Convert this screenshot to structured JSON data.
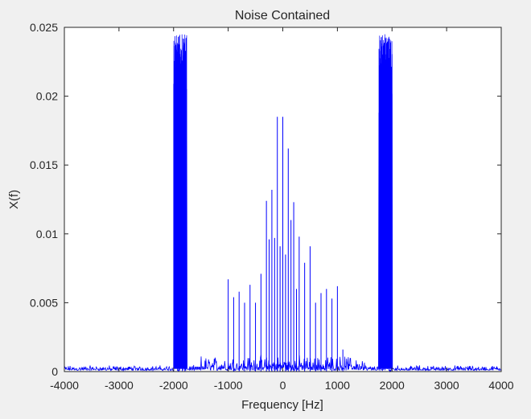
{
  "chart_data": {
    "type": "line",
    "title": "Noise Contained",
    "xlabel": "Frequency [Hz]",
    "ylabel": "X(f)",
    "xlim": [
      -4000,
      4000
    ],
    "ylim": [
      0,
      0.025
    ],
    "xticks": [
      "-4000",
      "-3000",
      "-2000",
      "-1000",
      "0",
      "1000",
      "2000",
      "3000",
      "4000"
    ],
    "yticks": [
      "0",
      "0.005",
      "0.01",
      "0.015",
      "0.02",
      "0.025"
    ],
    "grid": false,
    "series_color": "#0000ff",
    "series": [
      {
        "noise_floor": 0.0003,
        "bands": [
          {
            "from": -2000,
            "to": -1760,
            "peak": 0.0245
          },
          {
            "from": 1760,
            "to": 2000,
            "peak": 0.0245
          }
        ],
        "x": [
          -1000,
          -900,
          -800,
          -700,
          -600,
          -500,
          -400,
          -300,
          -250,
          -200,
          -150,
          -100,
          -50,
          0,
          50,
          100,
          150,
          200,
          250,
          300,
          400,
          500,
          600,
          700,
          800,
          900,
          1000,
          1100
        ],
        "values": [
          0.0067,
          0.0054,
          0.0058,
          0.005,
          0.0063,
          0.005,
          0.0071,
          0.0124,
          0.0096,
          0.0132,
          0.0097,
          0.0185,
          0.0091,
          0.0185,
          0.0085,
          0.0162,
          0.011,
          0.0123,
          0.006,
          0.0098,
          0.0079,
          0.0091,
          0.005,
          0.0057,
          0.006,
          0.0053,
          0.0062,
          0.0016
        ]
      }
    ]
  }
}
